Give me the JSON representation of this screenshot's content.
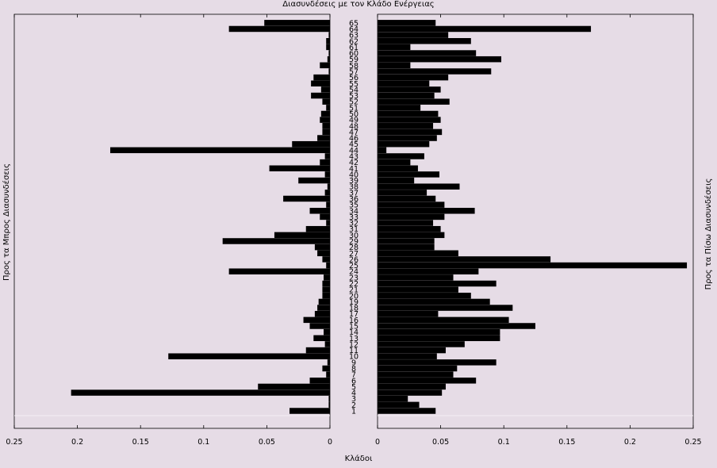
{
  "chart_data": {
    "type": "bar",
    "orientation": "horizontal",
    "layout": "back-to-back",
    "title": "Διασυνδέσεις με τον Κλάδο Ενέργειας",
    "xlabel": "Κλάδοι",
    "left_ylabel": "Προς τα Μπρος Διασυνδέσεις",
    "right_ylabel": "Προς τα Πίσω Διασυνδέσεις",
    "left_xticks": [
      "0.25",
      "0.2",
      "0.15",
      "0.1",
      "0.05",
      "0"
    ],
    "right_xticks": [
      "0",
      "0.05",
      "0.1",
      "0.15",
      "0.2",
      "0.25"
    ],
    "xlim": [
      0,
      0.25
    ],
    "grid": false,
    "categories": [
      "1",
      "2",
      "3",
      "4",
      "5",
      "6",
      "7",
      "8",
      "9",
      "10",
      "11",
      "12",
      "13",
      "14",
      "15",
      "16",
      "17",
      "18",
      "19",
      "20",
      "21",
      "22",
      "23",
      "24",
      "25",
      "26",
      "27",
      "28",
      "29",
      "30",
      "31",
      "32",
      "33",
      "34",
      "35",
      "36",
      "37",
      "38",
      "39",
      "40",
      "41",
      "42",
      "43",
      "44",
      "45",
      "46",
      "47",
      "48",
      "49",
      "50",
      "51",
      "52",
      "53",
      "54",
      "55",
      "56",
      "57",
      "58",
      "59",
      "60",
      "61",
      "62",
      "63",
      "64",
      "65"
    ],
    "series": [
      {
        "side": "left",
        "values": [
          0.032,
          0.001,
          0.001,
          0.205,
          0.057,
          0.016,
          0.003,
          0.006,
          0.002,
          0.128,
          0.019,
          0.004,
          0.013,
          0.005,
          0.016,
          0.021,
          0.012,
          0.01,
          0.009,
          0.006,
          0.006,
          0.006,
          0.005,
          0.08,
          0.003,
          0.006,
          0.01,
          0.012,
          0.085,
          0.044,
          0.019,
          0.003,
          0.008,
          0.016,
          0.003,
          0.037,
          0.004,
          0.002,
          0.025,
          0.004,
          0.048,
          0.008,
          0.004,
          0.174,
          0.03,
          0.01,
          0.006,
          0.006,
          0.008,
          0.007,
          0.003,
          0.006,
          0.015,
          0.007,
          0.015,
          0.013,
          0.001,
          0.008,
          0.002,
          0.001,
          0.003,
          0.003,
          0.001,
          0.08,
          0.052
        ]
      },
      {
        "side": "right",
        "values": [
          0.046,
          0.033,
          0.024,
          0.051,
          0.054,
          0.078,
          0.06,
          0.063,
          0.094,
          0.047,
          0.054,
          0.069,
          0.097,
          0.097,
          0.125,
          0.104,
          0.048,
          0.107,
          0.089,
          0.074,
          0.064,
          0.094,
          0.06,
          0.08,
          0.245,
          0.137,
          0.064,
          0.045,
          0.045,
          0.053,
          0.05,
          0.044,
          0.053,
          0.077,
          0.053,
          0.046,
          0.039,
          0.065,
          0.029,
          0.049,
          0.032,
          0.026,
          0.037,
          0.007,
          0.041,
          0.047,
          0.051,
          0.044,
          0.05,
          0.048,
          0.034,
          0.057,
          0.045,
          0.05,
          0.041,
          0.056,
          0.09,
          0.026,
          0.098,
          0.078,
          0.026,
          0.074,
          0.056,
          0.169,
          0.046
        ]
      }
    ]
  }
}
